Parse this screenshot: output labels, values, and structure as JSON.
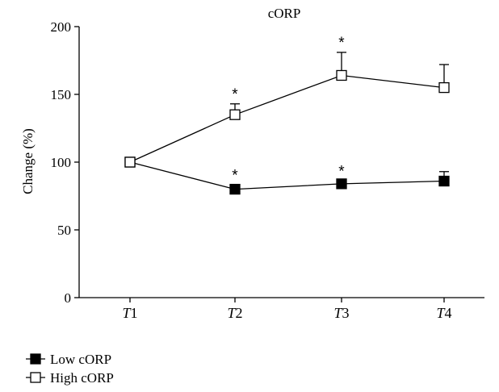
{
  "chart_data": {
    "type": "line",
    "title": "cORP",
    "xlabel": "",
    "ylabel": "Change (%)",
    "categories": [
      "T1",
      "T2",
      "T3",
      "T4"
    ],
    "category_parts": [
      {
        "prefix": "T",
        "index": "1"
      },
      {
        "prefix": "T",
        "index": "2"
      },
      {
        "prefix": "T",
        "index": "3"
      },
      {
        "prefix": "T",
        "index": "4"
      }
    ],
    "ylim": [
      0,
      200
    ],
    "yticks": [
      0,
      50,
      100,
      150,
      200
    ],
    "ytick_labels": [
      "0",
      "50",
      "100",
      "150",
      "200"
    ],
    "grid": false,
    "legend_position": "bottom-left",
    "series": [
      {
        "name": "Low cORP",
        "marker": "filled-square",
        "color": "#000000",
        "values": [
          100,
          80,
          84,
          86
        ],
        "error": [
          0,
          3,
          2,
          7
        ],
        "significant": [
          false,
          true,
          true,
          false
        ]
      },
      {
        "name": "High cORP",
        "marker": "open-square",
        "color": "#000000",
        "values": [
          100,
          135,
          164,
          155
        ],
        "error": [
          0,
          8,
          17,
          17
        ],
        "significant": [
          false,
          true,
          true,
          false
        ]
      }
    ],
    "significance_marker": "*"
  }
}
